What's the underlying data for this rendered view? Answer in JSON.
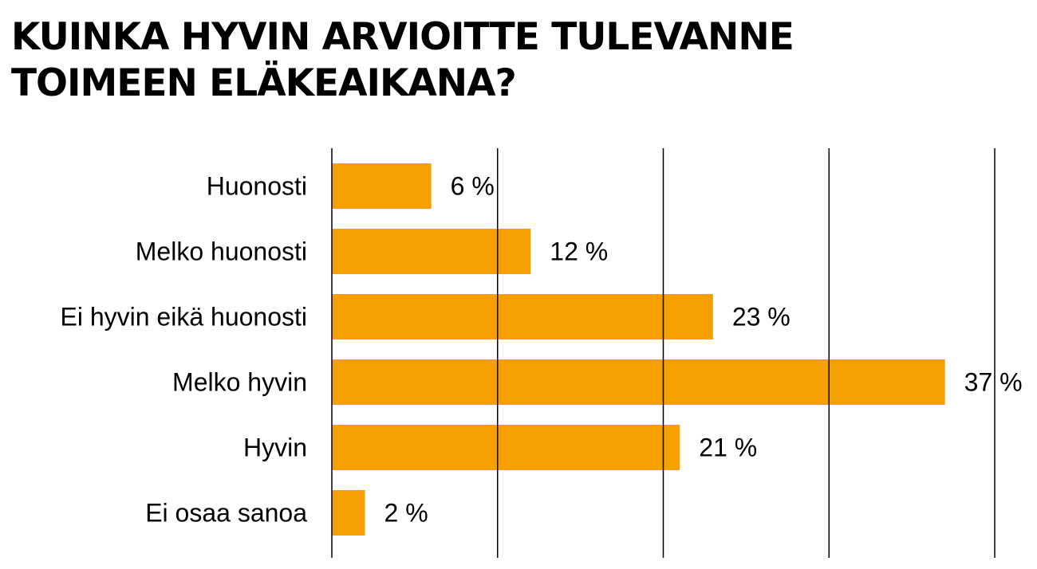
{
  "title_lines": [
    "KUINKA HYVIN ARVIOITTE TULEVANNE",
    "TOIMEEN ELÄKEAIKANA?"
  ],
  "colors": {
    "bar": "#f5a000",
    "grid": "#000000",
    "text": "#000000"
  },
  "chart_data": {
    "type": "bar",
    "orientation": "horizontal",
    "categories": [
      "Huonosti",
      "Melko huonosti",
      "Ei hyvin eikä huonosti",
      "Melko hyvin",
      "Hyvin",
      "Ei osaa sanoa"
    ],
    "values": [
      6,
      12,
      23,
      37,
      21,
      2
    ],
    "value_labels": [
      "6 %",
      "12 %",
      "23 %",
      "37 %",
      "21 %",
      "2 %"
    ],
    "unit": "%",
    "xlim": [
      0,
      40
    ],
    "gridlines": [
      0,
      10,
      20,
      30,
      40
    ],
    "grid": true,
    "legend": "none"
  }
}
